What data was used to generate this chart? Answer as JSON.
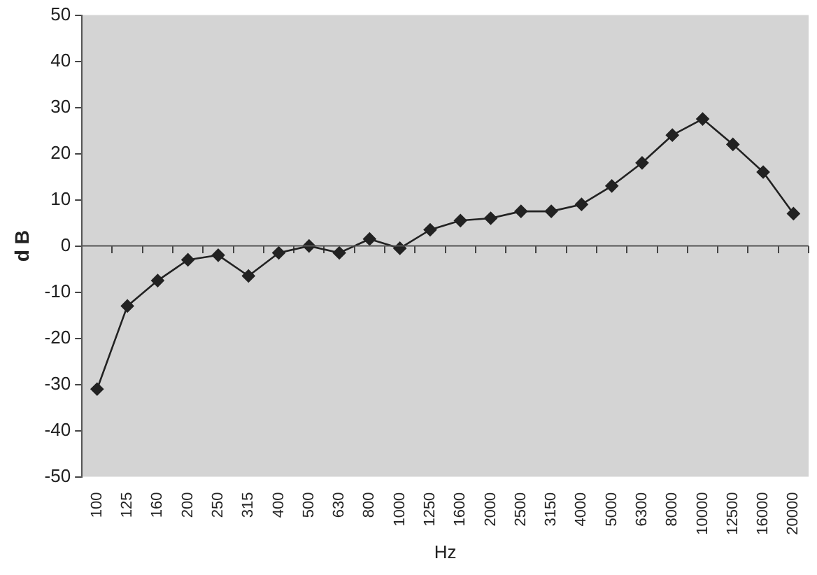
{
  "chart_data": {
    "type": "line",
    "xlabel": "Hz",
    "ylabel": "d B",
    "categories": [
      "100",
      "125",
      "160",
      "200",
      "250",
      "315",
      "400",
      "500",
      "630",
      "800",
      "1000",
      "1250",
      "1600",
      "2000",
      "2500",
      "3150",
      "4000",
      "5000",
      "6300",
      "8000",
      "10000",
      "12500",
      "16000",
      "20000"
    ],
    "series": [
      {
        "color": "#222222",
        "values": [
          -31,
          -13,
          -7.5,
          -3,
          -2,
          -6.5,
          -1.5,
          0,
          -1.5,
          1.5,
          -0.5,
          3.5,
          5.5,
          6,
          7.5,
          7.5,
          9,
          13,
          18,
          24,
          27.5,
          22,
          16,
          7
        ]
      }
    ],
    "ylim": [
      -50,
      50
    ],
    "yticks": [
      -50,
      -40,
      -30,
      -20,
      -10,
      0,
      10,
      20,
      30,
      40,
      50
    ],
    "grid": false,
    "ref_lines": [
      {
        "axis": "y",
        "value": 0,
        "color": "#555555",
        "line_style": "solid"
      }
    ],
    "legend": false,
    "marker": "diamond",
    "line_style": "solid"
  }
}
